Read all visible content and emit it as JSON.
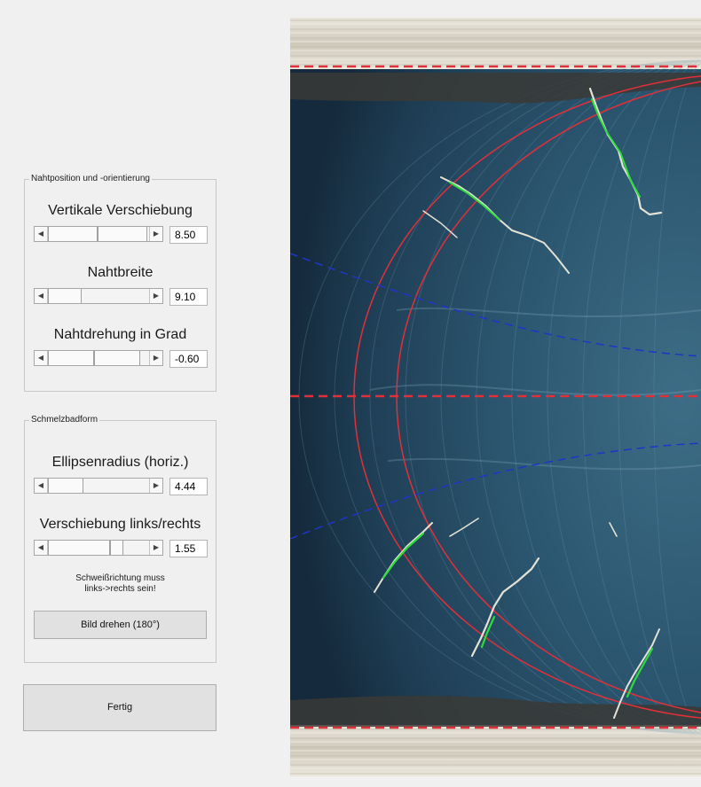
{
  "panel_seam": {
    "title": "Nahtposition und -orientierung",
    "sliders": [
      {
        "label": "Vertikale Verschiebung",
        "value": "8.50",
        "position": 0.5
      },
      {
        "label": "Nahtbreite",
        "value": "9.10",
        "position": 0.24
      },
      {
        "label": "Nahtdrehung in Grad",
        "value": "-0.60",
        "position": 0.48
      }
    ]
  },
  "panel_pool": {
    "title": "Schmelzbadform",
    "sliders": [
      {
        "label": "Ellipsenradius (horiz.)",
        "value": "4.44",
        "position": 0.27
      },
      {
        "label": "Verschiebung links/rechts",
        "value": "1.55",
        "position": 0.6
      }
    ],
    "note_line1": "Schweißrichtung muss",
    "note_line2": "links->rechts sein!",
    "rotate_button": "Bild drehen (180°)"
  },
  "done_button": "Fertig",
  "colors": {
    "overlay_red": "#e0303a",
    "overlay_blue": "#1e36c8",
    "crack_green": "#2bdc3a"
  }
}
